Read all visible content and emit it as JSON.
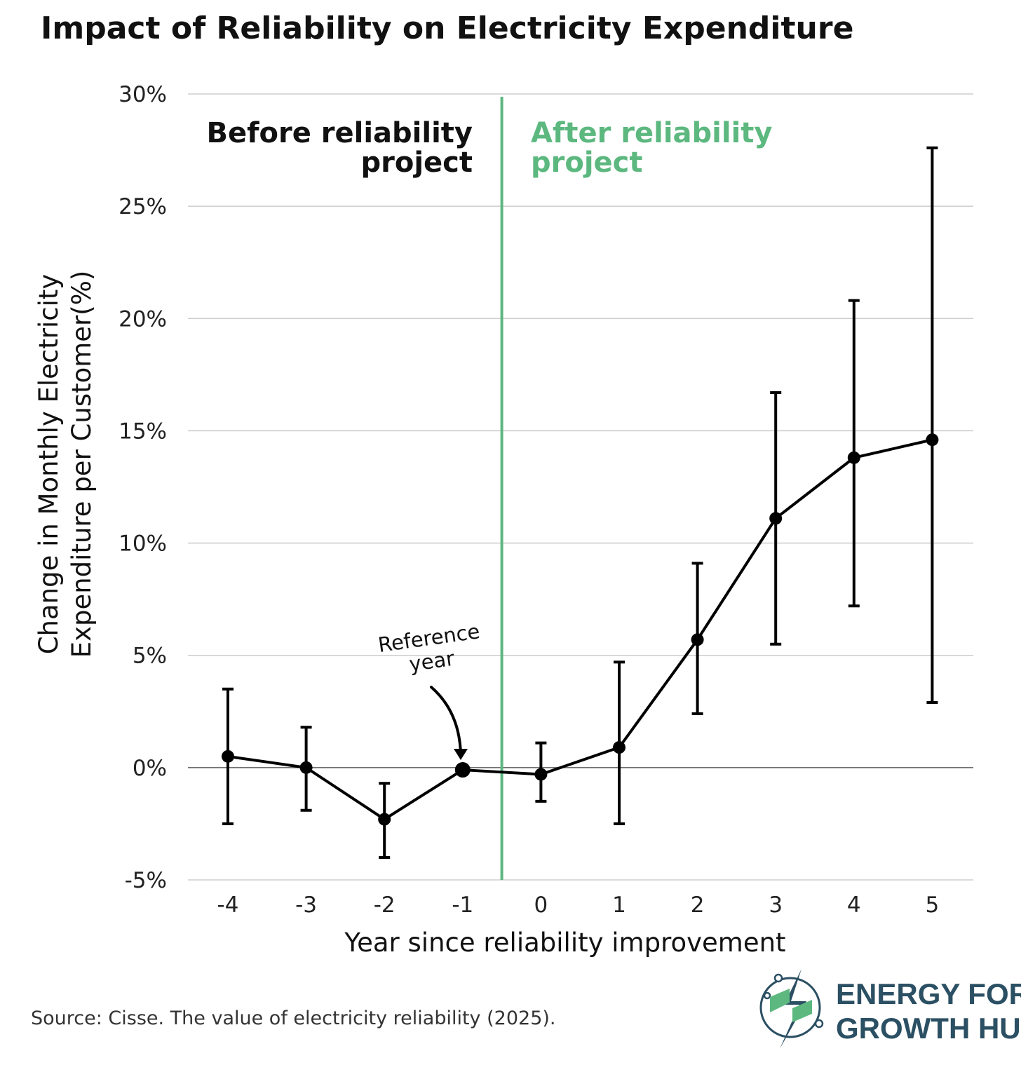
{
  "chart_data": {
    "type": "line",
    "title": "Impact of Reliability on Electricity Expenditure",
    "xlabel": "Year since reliability improvement",
    "ylabel_line1": "Change in Monthly Electricity",
    "ylabel_line2": "Expenditure per Customer(%)",
    "x": [
      -4,
      -3,
      -2,
      -1,
      0,
      1,
      2,
      3,
      4,
      5
    ],
    "x_tick_labels": [
      "-4",
      "-3",
      "-2",
      "-1",
      "0",
      "1",
      "2",
      "3",
      "4",
      "5"
    ],
    "y_tick_values": [
      -5,
      0,
      5,
      10,
      15,
      20,
      25,
      30
    ],
    "y_tick_labels": [
      "-5%",
      "0%",
      "5%",
      "10%",
      "15%",
      "20%",
      "25%",
      "30%"
    ],
    "ylim": [
      -5,
      30
    ],
    "grid": "horizontal",
    "series": [
      {
        "values": [
          0.5,
          0.0,
          -2.3,
          -0.1,
          -0.3,
          0.9,
          5.7,
          11.1,
          13.8,
          14.6
        ],
        "ci_low": [
          -2.5,
          -1.9,
          -4.0,
          null,
          -1.5,
          -2.5,
          2.4,
          5.5,
          7.2,
          2.9
        ],
        "ci_high": [
          3.5,
          1.8,
          -0.7,
          null,
          1.1,
          4.7,
          9.1,
          16.7,
          20.8,
          27.6
        ],
        "color": "#000000"
      }
    ],
    "divider_x": -0.5,
    "divider_color": "#5cb87f",
    "region_labels": {
      "before_line1": "Before reliability",
      "before_line2": "project",
      "after_line1": "After reliability",
      "after_line2": "project",
      "before_color": "#111111",
      "after_color": "#5cb87f"
    },
    "annotation": {
      "text_line1": "Reference",
      "text_line2": "year",
      "points_to_x": -1
    }
  },
  "source": "Source: Cisse. The value of electricity reliability (2025).",
  "brand": {
    "line1": "ENERGY FOR",
    "line2": "GROWTH HUB",
    "color": "#2b4f63",
    "accent": "#5cb87f"
  }
}
